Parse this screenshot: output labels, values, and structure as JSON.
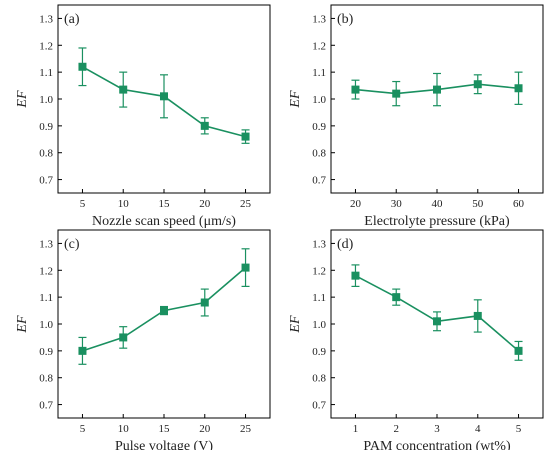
{
  "figure": {
    "line_color": "#1a9060"
  },
  "chart_data": [
    {
      "type": "line",
      "panel_label": "(a)",
      "xlabel": "Nozzle scan speed (μm/s)",
      "ylabel": "EF",
      "x": [
        5,
        10,
        15,
        20,
        25
      ],
      "xticks": [
        "5",
        "10",
        "15",
        "20",
        "25"
      ],
      "xlim": [
        2,
        28
      ],
      "values": [
        1.12,
        1.035,
        1.01,
        0.9,
        0.86
      ],
      "errors": [
        0.07,
        0.065,
        0.08,
        0.03,
        0.025
      ],
      "ylim": [
        0.65,
        1.35
      ],
      "yticks": [
        "0.7",
        "0.8",
        "0.9",
        "1.0",
        "1.1",
        "1.2",
        "1.3"
      ],
      "grid": false
    },
    {
      "type": "line",
      "panel_label": "(b)",
      "xlabel": "Electrolyte pressure (kPa)",
      "ylabel": "EF",
      "x": [
        20,
        30,
        40,
        50,
        60
      ],
      "xticks": [
        "20",
        "30",
        "40",
        "50",
        "60"
      ],
      "xlim": [
        14,
        66
      ],
      "values": [
        1.035,
        1.02,
        1.035,
        1.055,
        1.04
      ],
      "errors": [
        0.035,
        0.045,
        0.06,
        0.035,
        0.06
      ],
      "ylim": [
        0.65,
        1.35
      ],
      "yticks": [
        "0.7",
        "0.8",
        "0.9",
        "1.0",
        "1.1",
        "1.2",
        "1.3"
      ],
      "grid": false
    },
    {
      "type": "line",
      "panel_label": "(c)",
      "xlabel": "Pulse voltage (V)",
      "ylabel": "EF",
      "x": [
        5,
        10,
        15,
        20,
        25
      ],
      "xticks": [
        "5",
        "10",
        "15",
        "20",
        "25"
      ],
      "xlim": [
        2,
        28
      ],
      "values": [
        0.9,
        0.95,
        1.05,
        1.08,
        1.21
      ],
      "errors": [
        0.05,
        0.04,
        0.015,
        0.05,
        0.07
      ],
      "ylim": [
        0.65,
        1.35
      ],
      "yticks": [
        "0.7",
        "0.8",
        "0.9",
        "1.0",
        "1.1",
        "1.2",
        "1.3"
      ],
      "grid": false
    },
    {
      "type": "line",
      "panel_label": "(d)",
      "xlabel": "PAM concentration (wt%)",
      "ylabel": "EF",
      "x": [
        1,
        2,
        3,
        4,
        5
      ],
      "xticks": [
        "1",
        "2",
        "3",
        "4",
        "5"
      ],
      "xlim": [
        0.4,
        5.6
      ],
      "values": [
        1.18,
        1.1,
        1.01,
        1.03,
        0.9
      ],
      "errors": [
        0.04,
        0.03,
        0.035,
        0.06,
        0.035
      ],
      "ylim": [
        0.65,
        1.35
      ],
      "yticks": [
        "0.7",
        "0.8",
        "0.9",
        "1.0",
        "1.1",
        "1.2",
        "1.3"
      ],
      "grid": false
    }
  ]
}
